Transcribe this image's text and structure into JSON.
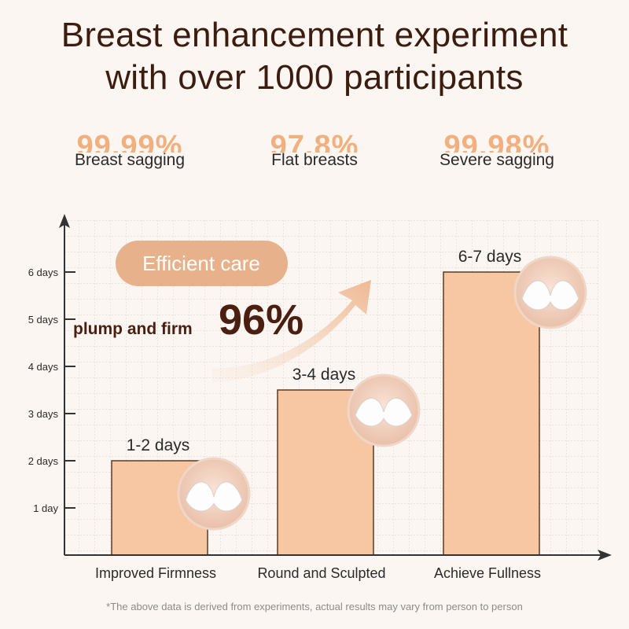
{
  "header": {
    "title_line1": "Breast enhancement experiment",
    "title_line2": "with over 1000 participants"
  },
  "stats": [
    {
      "value": "99.99%",
      "label": "Breast sagging"
    },
    {
      "value": "97.8%",
      "label": "Flat breasts"
    },
    {
      "value": "99.98%",
      "label": "Severe sagging"
    }
  ],
  "badge": {
    "label": "Efficient care"
  },
  "claim": {
    "text": "plump and firm",
    "percent": "96%"
  },
  "chart_data": {
    "type": "bar",
    "categories": [
      "Improved Firmness",
      "Round and Sculpted",
      "Achieve Fullness"
    ],
    "values": [
      2,
      3.5,
      6
    ],
    "data_labels": [
      "1-2 days",
      "3-4 days",
      "6-7 days"
    ],
    "y_ticks": [
      {
        "value": 1,
        "label": "1 day"
      },
      {
        "value": 2,
        "label": "2 days"
      },
      {
        "value": 3,
        "label": "3 days"
      },
      {
        "value": 4,
        "label": "4 days"
      },
      {
        "value": 5,
        "label": "5 days"
      },
      {
        "value": 6,
        "label": "6 days"
      }
    ],
    "ylim": [
      0,
      7
    ],
    "grid": true
  },
  "footnote": "*The above data is derived from experiments, actual results may vary from person to person",
  "colors": {
    "bar": "#f7c7a3",
    "bar_stroke": "#5a3a25",
    "badge": "#e9b58f",
    "arrow": "#f0c09c",
    "axis": "#333333",
    "grid": "#d6d6d6",
    "title": "#3b1c0f",
    "claim": "#4b1f10"
  },
  "icons": [
    "bra-photo-1",
    "bra-photo-2",
    "bra-photo-3"
  ]
}
